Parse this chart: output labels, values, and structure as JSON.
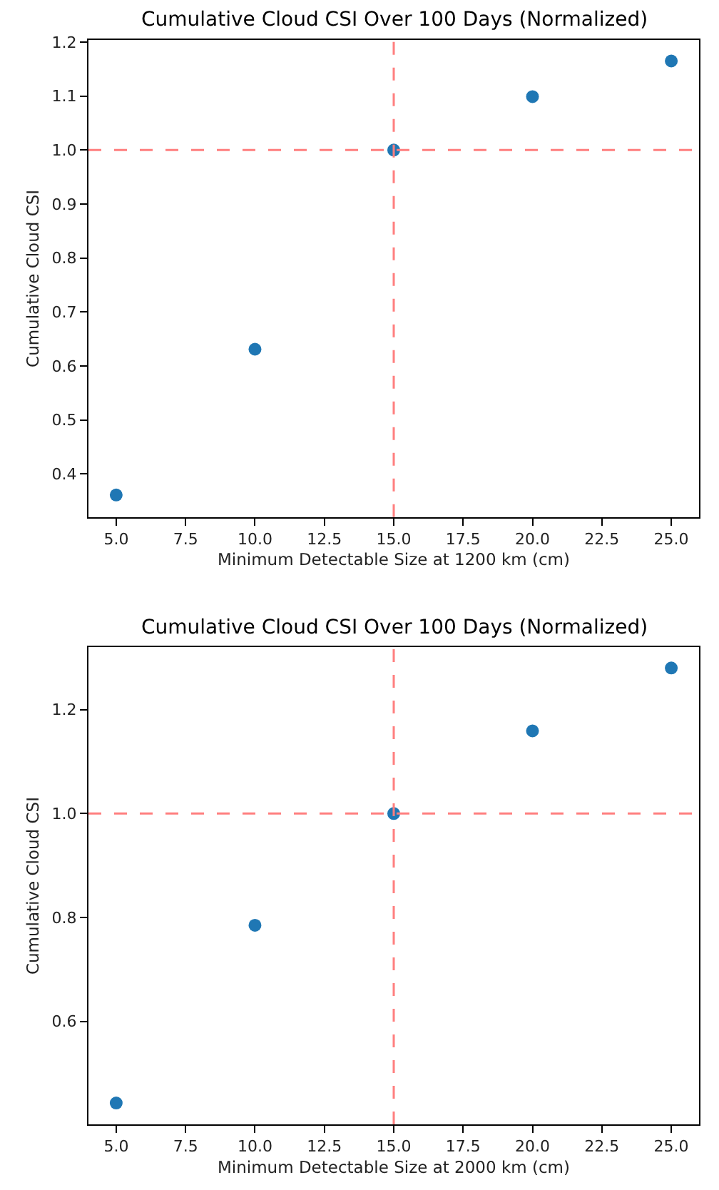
{
  "chart_data": [
    {
      "type": "scatter",
      "title": "Cumulative Cloud CSI Over 100 Days (Normalized)",
      "xlabel": "Minimum Detectable Size at 1200 km (cm)",
      "ylabel": "Cumulative Cloud CSI",
      "x": [
        5,
        10,
        15,
        20,
        25
      ],
      "series": [
        {
          "color": "#1f77b4",
          "values": [
            0.361,
            0.631,
            1.0,
            1.099,
            1.165
          ]
        }
      ],
      "xlim": [
        4,
        26
      ],
      "xticks": [
        {
          "value": 5,
          "label": "5.0"
        },
        {
          "value": 7.5,
          "label": "7.5"
        },
        {
          "value": 10,
          "label": "10.0"
        },
        {
          "value": 12.5,
          "label": "12.5"
        },
        {
          "value": 15,
          "label": "15.0"
        },
        {
          "value": 17.5,
          "label": "17.5"
        },
        {
          "value": 20,
          "label": "20.0"
        },
        {
          "value": 22.5,
          "label": "22.5"
        },
        {
          "value": 25,
          "label": "25.0"
        }
      ],
      "ylim": [
        0.32,
        1.204
      ],
      "yticks": [
        0.4,
        0.5,
        0.6,
        0.7,
        0.8,
        0.9,
        {
          "value": 1.0,
          "label": "1.0"
        },
        1.1,
        1.2
      ],
      "ref_lines": [
        {
          "axis": "x",
          "value": 15,
          "color": "#ff7f7f",
          "line_style": "dashed"
        },
        {
          "axis": "y",
          "value": 1.0,
          "color": "#ff7f7f",
          "line_style": "dashed"
        }
      ],
      "marker": "circle"
    },
    {
      "type": "scatter",
      "title": "Cumulative Cloud CSI Over 100 Days (Normalized)",
      "xlabel": "Minimum Detectable Size at 2000 km (cm)",
      "ylabel": "Cumulative Cloud CSI",
      "x": [
        5,
        10,
        15,
        20,
        25
      ],
      "series": [
        {
          "color": "#1f77b4",
          "values": [
            0.443,
            0.785,
            1.0,
            1.159,
            1.28
          ]
        }
      ],
      "xlim": [
        4,
        26
      ],
      "xticks": [
        {
          "value": 5,
          "label": "5.0"
        },
        {
          "value": 7.5,
          "label": "7.5"
        },
        {
          "value": 10,
          "label": "10.0"
        },
        {
          "value": 12.5,
          "label": "12.5"
        },
        {
          "value": 15,
          "label": "15.0"
        },
        {
          "value": 17.5,
          "label": "17.5"
        },
        {
          "value": 20,
          "label": "20.0"
        },
        {
          "value": 22.5,
          "label": "22.5"
        },
        {
          "value": 25,
          "label": "25.0"
        }
      ],
      "ylim": [
        0.402,
        1.32
      ],
      "yticks": [
        0.6,
        0.8,
        {
          "value": 1.0,
          "label": "1.0"
        },
        1.2
      ],
      "ref_lines": [
        {
          "axis": "x",
          "value": 15,
          "color": "#ff7f7f",
          "line_style": "dashed"
        },
        {
          "axis": "y",
          "value": 1.0,
          "color": "#ff7f7f",
          "line_style": "dashed"
        }
      ],
      "marker": "circle"
    }
  ]
}
